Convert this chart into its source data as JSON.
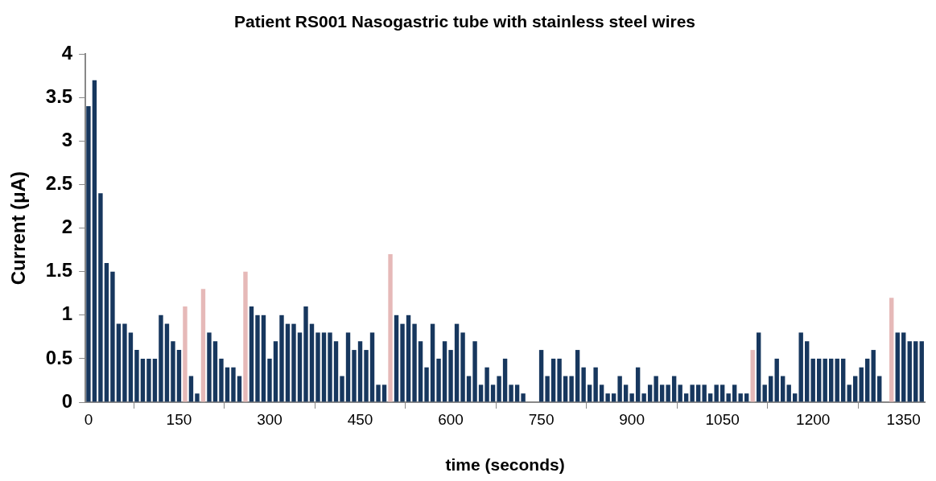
{
  "chart_data": {
    "type": "bar",
    "title": "Patient RS001 Nasogastric tube with stainless steel wires",
    "xlabel": "time (seconds)",
    "ylabel": "Current (μA)",
    "x": [
      0,
      10,
      20,
      30,
      40,
      50,
      60,
      70,
      80,
      90,
      100,
      110,
      120,
      130,
      140,
      150,
      160,
      170,
      180,
      190,
      200,
      210,
      220,
      230,
      240,
      250,
      260,
      270,
      280,
      290,
      300,
      310,
      320,
      330,
      340,
      350,
      360,
      370,
      380,
      390,
      400,
      410,
      420,
      430,
      440,
      450,
      460,
      470,
      480,
      490,
      500,
      510,
      520,
      530,
      540,
      550,
      560,
      570,
      580,
      590,
      600,
      610,
      620,
      630,
      640,
      650,
      660,
      670,
      680,
      690,
      700,
      710,
      720,
      730,
      740,
      750,
      760,
      770,
      780,
      790,
      800,
      810,
      820,
      830,
      840,
      850,
      860,
      870,
      880,
      890,
      900,
      910,
      920,
      930,
      940,
      950,
      960,
      970,
      980,
      990,
      1000,
      1010,
      1020,
      1030,
      1040,
      1050,
      1060,
      1070,
      1080,
      1090,
      1100,
      1110,
      1120,
      1130,
      1140,
      1150,
      1160,
      1170,
      1180,
      1190,
      1200,
      1210,
      1220,
      1230,
      1240,
      1250,
      1260,
      1270,
      1280,
      1290,
      1300,
      1310,
      1320,
      1330,
      1340,
      1350,
      1360,
      1370,
      1380
    ],
    "values": [
      3.4,
      3.7,
      2.4,
      1.6,
      1.5,
      0.9,
      0.9,
      0.8,
      0.6,
      0.5,
      0.5,
      0.5,
      1.0,
      0.9,
      0.7,
      0.6,
      1.1,
      0.3,
      0.1,
      1.3,
      0.8,
      0.7,
      0.5,
      0.4,
      0.4,
      0.3,
      1.5,
      1.1,
      1.0,
      1.0,
      0.5,
      0.7,
      1.0,
      0.9,
      0.9,
      0.8,
      1.1,
      0.9,
      0.8,
      0.8,
      0.8,
      0.7,
      0.3,
      0.8,
      0.6,
      0.7,
      0.6,
      0.8,
      0.2,
      0.2,
      1.7,
      1.0,
      0.9,
      1.0,
      0.9,
      0.7,
      0.4,
      0.9,
      0.5,
      0.7,
      0.6,
      0.9,
      0.8,
      0.3,
      0.7,
      0.2,
      0.4,
      0.2,
      0.3,
      0.5,
      0.2,
      0.2,
      0.1,
      null,
      null,
      0.6,
      0.3,
      0.5,
      0.5,
      0.3,
      0.3,
      0.6,
      0.4,
      0.2,
      0.4,
      0.2,
      0.1,
      0.1,
      0.3,
      0.2,
      0.1,
      0.4,
      0.1,
      0.2,
      0.3,
      0.2,
      0.2,
      0.3,
      0.2,
      0.1,
      0.2,
      0.2,
      0.2,
      0.1,
      0.2,
      0.2,
      0.1,
      0.2,
      0.1,
      0.1,
      0.6,
      0.8,
      0.2,
      0.3,
      0.5,
      0.3,
      0.2,
      0.1,
      0.8,
      0.7,
      0.5,
      0.5,
      0.5,
      0.5,
      0.5,
      0.5,
      0.2,
      0.3,
      0.4,
      0.5,
      0.6,
      0.3,
      null,
      1.2,
      0.8,
      0.8,
      0.7,
      0.7,
      0.7
    ],
    "colors": [
      "#17375e",
      "#17375e",
      "#17375e",
      "#17375e",
      "#17375e",
      "#17375e",
      "#17375e",
      "#17375e",
      "#17375e",
      "#17375e",
      "#17375e",
      "#17375e",
      "#17375e",
      "#17375e",
      "#17375e",
      "#17375e",
      "#e6b9b8",
      "#17375e",
      "#17375e",
      "#e6b9b8",
      "#17375e",
      "#17375e",
      "#17375e",
      "#17375e",
      "#17375e",
      "#17375e",
      "#e6b9b8",
      "#17375e",
      "#17375e",
      "#17375e",
      "#17375e",
      "#17375e",
      "#17375e",
      "#17375e",
      "#17375e",
      "#17375e",
      "#17375e",
      "#17375e",
      "#17375e",
      "#17375e",
      "#17375e",
      "#17375e",
      "#17375e",
      "#17375e",
      "#17375e",
      "#17375e",
      "#17375e",
      "#17375e",
      "#17375e",
      "#17375e",
      "#e6b9b8",
      "#17375e",
      "#17375e",
      "#17375e",
      "#17375e",
      "#17375e",
      "#17375e",
      "#17375e",
      "#17375e",
      "#17375e",
      "#17375e",
      "#17375e",
      "#17375e",
      "#17375e",
      "#17375e",
      "#17375e",
      "#17375e",
      "#17375e",
      "#17375e",
      "#17375e",
      "#17375e",
      "#17375e",
      "#17375e",
      "#17375e",
      "#17375e",
      "#17375e",
      "#17375e",
      "#17375e",
      "#17375e",
      "#17375e",
      "#17375e",
      "#17375e",
      "#17375e",
      "#17375e",
      "#17375e",
      "#17375e",
      "#17375e",
      "#17375e",
      "#17375e",
      "#17375e",
      "#17375e",
      "#17375e",
      "#17375e",
      "#17375e",
      "#17375e",
      "#17375e",
      "#17375e",
      "#17375e",
      "#17375e",
      "#17375e",
      "#17375e",
      "#17375e",
      "#17375e",
      "#17375e",
      "#17375e",
      "#17375e",
      "#17375e",
      "#17375e",
      "#17375e",
      "#17375e",
      "#e6b9b8",
      "#17375e",
      "#17375e",
      "#17375e",
      "#17375e",
      "#17375e",
      "#17375e",
      "#17375e",
      "#17375e",
      "#17375e",
      "#17375e",
      "#17375e",
      "#17375e",
      "#17375e",
      "#17375e",
      "#17375e",
      "#17375e",
      "#17375e",
      "#17375e",
      "#17375e",
      "#17375e",
      "#17375e",
      "#17375e",
      "#e6b9b8",
      "#17375e",
      "#17375e",
      "#17375e",
      "#17375e",
      "#17375e"
    ],
    "xlim": [
      -5,
      1385
    ],
    "xticks": [
      0,
      150,
      300,
      450,
      600,
      750,
      900,
      1050,
      1200,
      1350
    ],
    "ylim": [
      0,
      4
    ],
    "yticks": [
      0,
      0.5,
      1,
      1.5,
      2,
      2.5,
      3,
      3.5,
      4
    ]
  }
}
